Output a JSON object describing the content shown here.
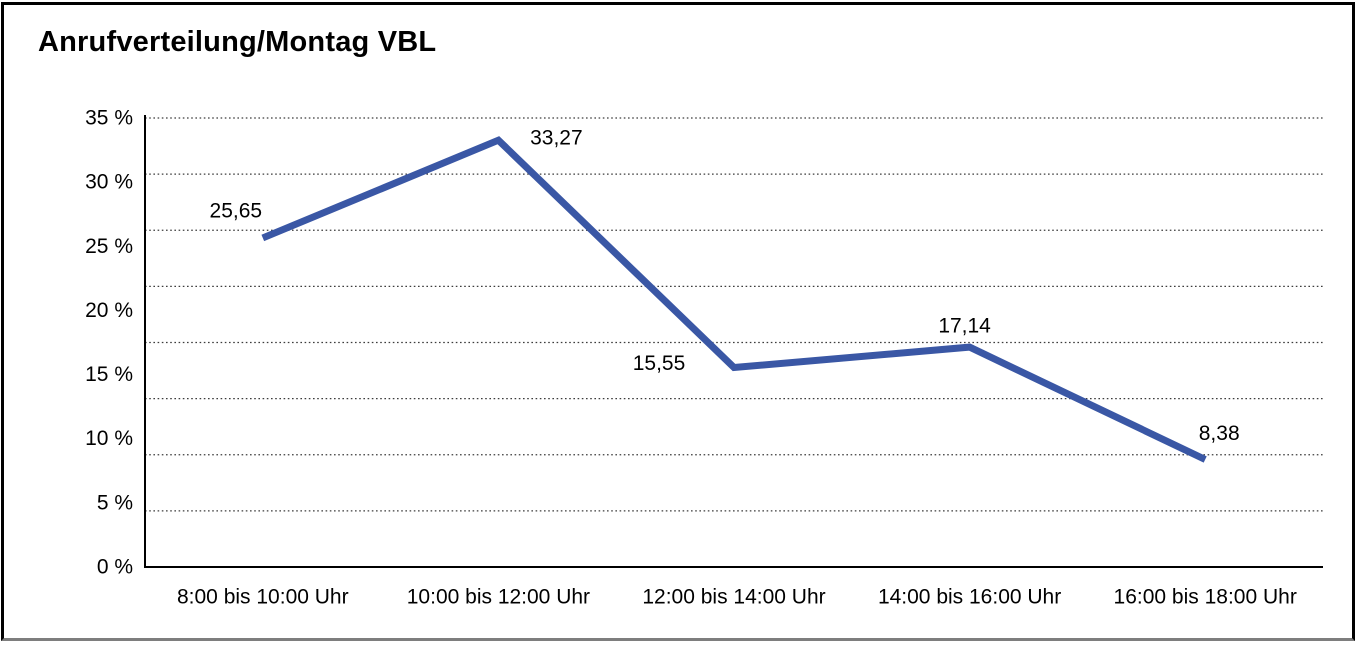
{
  "chart_data": {
    "type": "line",
    "title": "Anrufverteilung/Montag VBL",
    "categories": [
      "8:00 bis 10:00 Uhr",
      "10:00 bis 12:00 Uhr",
      "12:00 bis 14:00 Uhr",
      "14:00 bis 16:00 Uhr",
      "16:00 bis 18:00 Uhr"
    ],
    "values": [
      25.65,
      33.27,
      15.55,
      17.14,
      8.38
    ],
    "value_labels": [
      "25,65",
      "33,27",
      "15,55",
      "17,14",
      "8,38"
    ],
    "unit": "%",
    "xlabel": "",
    "ylabel": "",
    "ylim": [
      0,
      35
    ],
    "ytick_labels": [
      "35 %",
      "30 %",
      "25 %",
      "20 %",
      "15 %",
      "10 %",
      "5 %",
      "0 %"
    ],
    "grid": "horizontal dotted gridlines, 8 equal divisions",
    "legend": "none",
    "line_color": "#3A57A5",
    "axis_color": "#000000",
    "gridline_color": "#3c3c3c",
    "text_color": "#000000"
  }
}
